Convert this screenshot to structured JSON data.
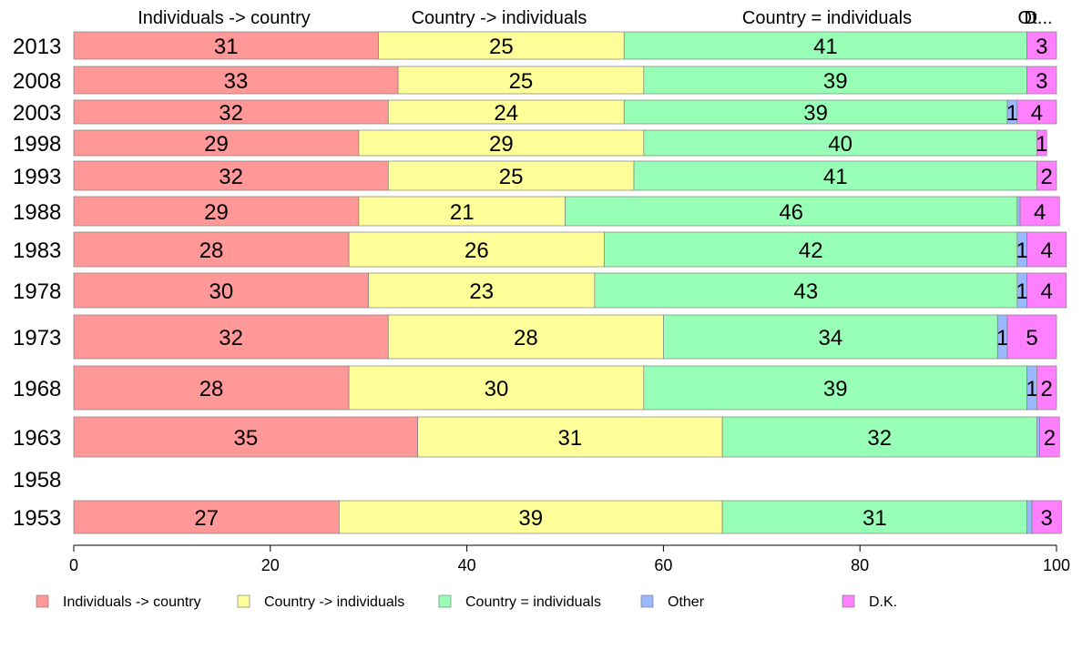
{
  "chart_data": {
    "type": "bar",
    "orientation": "horizontal",
    "stacked": true,
    "categories": [
      "2013",
      "2008",
      "2003",
      "1998",
      "1993",
      "1988",
      "1983",
      "1978",
      "1973",
      "1968",
      "1963",
      "1958",
      "1953"
    ],
    "series": [
      {
        "name": "Individuals -> country",
        "color": "#ff9896",
        "values": [
          31,
          33,
          32,
          29,
          32,
          29,
          28,
          30,
          32,
          28,
          35,
          null,
          27
        ]
      },
      {
        "name": "Country -> individuals",
        "color": "#ffff99",
        "values": [
          25,
          25,
          24,
          29,
          25,
          21,
          26,
          23,
          28,
          30,
          31,
          null,
          39
        ]
      },
      {
        "name": "Country = individuals",
        "color": "#98ffb6",
        "values": [
          41,
          39,
          39,
          40,
          41,
          46,
          42,
          43,
          34,
          39,
          32,
          null,
          31
        ]
      },
      {
        "name": "Other",
        "color": "#99b8ff",
        "values": [
          0,
          0,
          1,
          0,
          0,
          0.3,
          1,
          1,
          1,
          1,
          0.3,
          null,
          0.5
        ]
      },
      {
        "name": "D.K.",
        "color": "#ff80ff",
        "values": [
          3,
          3,
          4,
          1,
          2,
          4,
          4,
          4,
          5,
          2,
          2,
          null,
          3
        ]
      }
    ],
    "header_labels": [
      "Individuals -> country",
      "Country -> individuals",
      "Country = individuals",
      "Ot",
      "D..."
    ],
    "xlim": [
      0,
      100
    ],
    "xticks": [
      0,
      20,
      40,
      60,
      80,
      100
    ],
    "legend_position": "bottom",
    "grid": false,
    "title": "",
    "xlabel": "",
    "ylabel": ""
  }
}
